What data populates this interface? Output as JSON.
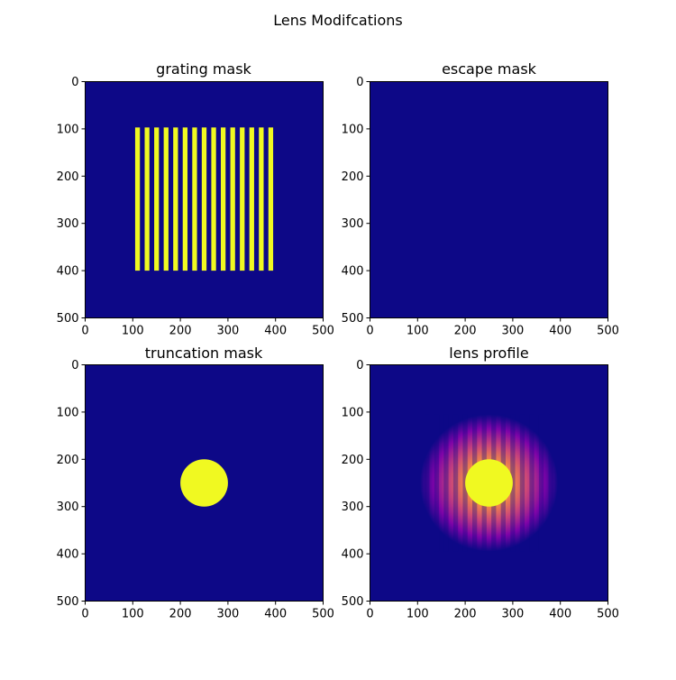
{
  "figure": {
    "title": "Lens Modifcations"
  },
  "colors": {
    "background_low": "#0d0887",
    "purple": "#7e03a8",
    "magenta": "#cc4778",
    "orange": "#f89540",
    "high": "#f0f921",
    "axis": "#000000"
  },
  "chart_data": [
    {
      "type": "heatmap",
      "title": "grating mask",
      "colormap": "plasma",
      "xlim": [
        0,
        500
      ],
      "ylim": [
        500,
        0
      ],
      "xticks": [
        0,
        100,
        200,
        300,
        400,
        500
      ],
      "yticks": [
        0,
        100,
        200,
        300,
        400,
        500
      ],
      "xtick_labels": [
        "0",
        "100",
        "200",
        "300",
        "400",
        "500"
      ],
      "ytick_labels": [
        "0",
        "100",
        "200",
        "300",
        "400",
        "500"
      ],
      "background_value": 0,
      "stripe_region": {
        "x": [
          105,
          400
        ],
        "y": [
          97,
          400
        ]
      },
      "stripes": [
        {
          "x0": 105,
          "x1": 115,
          "value": 1
        },
        {
          "x0": 125,
          "x1": 135,
          "value": 1
        },
        {
          "x0": 145,
          "x1": 155,
          "value": 1
        },
        {
          "x0": 165,
          "x1": 175,
          "value": 1
        },
        {
          "x0": 185,
          "x1": 195,
          "value": 1
        },
        {
          "x0": 205,
          "x1": 215,
          "value": 1
        },
        {
          "x0": 225,
          "x1": 235,
          "value": 1
        },
        {
          "x0": 245,
          "x1": 255,
          "value": 1
        },
        {
          "x0": 265,
          "x1": 275,
          "value": 1
        },
        {
          "x0": 285,
          "x1": 295,
          "value": 1
        },
        {
          "x0": 305,
          "x1": 315,
          "value": 1
        },
        {
          "x0": 325,
          "x1": 335,
          "value": 1
        },
        {
          "x0": 345,
          "x1": 355,
          "value": 1
        },
        {
          "x0": 365,
          "x1": 375,
          "value": 1
        },
        {
          "x0": 385,
          "x1": 395,
          "value": 1
        }
      ]
    },
    {
      "type": "heatmap",
      "title": "escape mask",
      "colormap": "plasma",
      "xlim": [
        0,
        500
      ],
      "ylim": [
        500,
        0
      ],
      "xticks": [
        0,
        100,
        200,
        300,
        400,
        500
      ],
      "yticks": [
        0,
        100,
        200,
        300,
        400,
        500
      ],
      "xtick_labels": [
        "0",
        "100",
        "200",
        "300",
        "400",
        "500"
      ],
      "ytick_labels": [
        "0",
        "100",
        "200",
        "300",
        "400",
        "500"
      ],
      "background_value": 0
    },
    {
      "type": "heatmap",
      "title": "truncation mask",
      "colormap": "plasma",
      "xlim": [
        0,
        500
      ],
      "ylim": [
        500,
        0
      ],
      "xticks": [
        0,
        100,
        200,
        300,
        400,
        500
      ],
      "yticks": [
        0,
        100,
        200,
        300,
        400,
        500
      ],
      "xtick_labels": [
        "0",
        "100",
        "200",
        "300",
        "400",
        "500"
      ],
      "ytick_labels": [
        "0",
        "100",
        "200",
        "300",
        "400",
        "500"
      ],
      "background_value": 0,
      "disk": {
        "cx": 250,
        "cy": 250,
        "r": 50,
        "value": 1
      }
    },
    {
      "type": "heatmap",
      "title": "lens profile",
      "colormap": "plasma",
      "xlim": [
        0,
        500
      ],
      "ylim": [
        500,
        0
      ],
      "xticks": [
        0,
        100,
        200,
        300,
        400,
        500
      ],
      "yticks": [
        0,
        100,
        200,
        300,
        400,
        500
      ],
      "xtick_labels": [
        "0",
        "100",
        "200",
        "300",
        "400",
        "500"
      ],
      "ytick_labels": [
        "0",
        "100",
        "200",
        "300",
        "400",
        "500"
      ],
      "background_value": 0,
      "profile": {
        "cx": 250,
        "cy": 250,
        "outer_r": 145,
        "inner_r": 50,
        "center_value": 1
      },
      "stripes": [
        {
          "x0": 105,
          "x1": 115
        },
        {
          "x0": 125,
          "x1": 135
        },
        {
          "x0": 145,
          "x1": 155
        },
        {
          "x0": 165,
          "x1": 175
        },
        {
          "x0": 185,
          "x1": 195
        },
        {
          "x0": 205,
          "x1": 215
        },
        {
          "x0": 225,
          "x1": 235
        },
        {
          "x0": 245,
          "x1": 255
        },
        {
          "x0": 265,
          "x1": 275
        },
        {
          "x0": 285,
          "x1": 295
        },
        {
          "x0": 305,
          "x1": 315
        },
        {
          "x0": 325,
          "x1": 335
        },
        {
          "x0": 345,
          "x1": 355
        },
        {
          "x0": 365,
          "x1": 375
        },
        {
          "x0": 385,
          "x1": 395
        }
      ]
    }
  ]
}
